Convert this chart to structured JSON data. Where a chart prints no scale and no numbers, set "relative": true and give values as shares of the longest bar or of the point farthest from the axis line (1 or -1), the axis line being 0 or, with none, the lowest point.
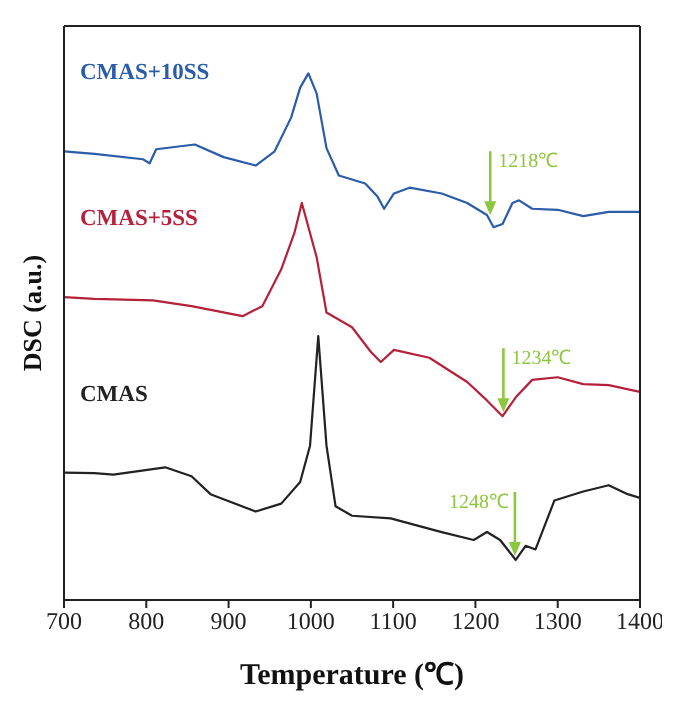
{
  "chart_data": {
    "type": "line",
    "relative": true,
    "xlabel": "Temperature (℃)",
    "ylabel": "DSC (a.u.)",
    "xlim": [
      700,
      1400
    ],
    "xticks": [
      700,
      800,
      900,
      1000,
      1100,
      1200,
      1300,
      1400
    ],
    "marker": "none",
    "line_style": "solid",
    "series": [
      {
        "name": "CMAS+10SS",
        "color": "#2a5caa",
        "x": [
          700,
          737,
          796,
          804,
          812,
          859,
          894,
          933,
          956,
          976,
          987,
          997,
          1007,
          1019,
          1034,
          1066,
          1081,
          1089,
          1101,
          1120,
          1159,
          1190,
          1214,
          1222,
          1233,
          1245,
          1253,
          1269,
          1300,
          1331,
          1362,
          1400
        ],
        "values": [
          0.852,
          0.847,
          0.837,
          0.829,
          0.856,
          0.865,
          0.841,
          0.825,
          0.852,
          0.916,
          0.973,
          1,
          0.962,
          0.858,
          0.806,
          0.791,
          0.766,
          0.743,
          0.772,
          0.783,
          0.772,
          0.754,
          0.731,
          0.708,
          0.714,
          0.754,
          0.759,
          0.743,
          0.741,
          0.729,
          0.737,
          0.737
        ]
      },
      {
        "name": "CMAS+5SS",
        "color": "#b5203a",
        "x": [
          700,
          737,
          808,
          855,
          917,
          941,
          964,
          980,
          989,
          1007,
          1019,
          1050,
          1073,
          1085,
          1101,
          1144,
          1190,
          1214,
          1233,
          1249,
          1269,
          1300,
          1331,
          1362,
          1400
        ],
        "values": [
          0.575,
          0.572,
          0.569,
          0.558,
          0.539,
          0.558,
          0.628,
          0.697,
          0.754,
          0.651,
          0.546,
          0.518,
          0.471,
          0.452,
          0.475,
          0.46,
          0.414,
          0.379,
          0.349,
          0.385,
          0.418,
          0.423,
          0.41,
          0.408,
          0.395
        ]
      },
      {
        "name": "CMAS",
        "color": "#222222",
        "x": [
          700,
          737,
          760,
          823,
          855,
          878,
          933,
          964,
          987,
          999,
          1009,
          1019,
          1030,
          1050,
          1097,
          1159,
          1198,
          1214,
          1230,
          1249,
          1261,
          1273,
          1296,
          1331,
          1362,
          1385,
          1400
        ],
        "values": [
          0.242,
          0.241,
          0.238,
          0.252,
          0.235,
          0.201,
          0.168,
          0.183,
          0.224,
          0.293,
          0.501,
          0.293,
          0.178,
          0.16,
          0.155,
          0.129,
          0.114,
          0.129,
          0.114,
          0.076,
          0.103,
          0.096,
          0.189,
          0.206,
          0.218,
          0.201,
          0.194
        ]
      }
    ],
    "annotations": [
      {
        "text": "1218℃",
        "x": 1218,
        "y": 0.723
      },
      {
        "text": "1234℃",
        "x": 1234,
        "y": 0.349
      },
      {
        "text": "1248℃",
        "x": 1248,
        "y": 0.076
      }
    ]
  }
}
